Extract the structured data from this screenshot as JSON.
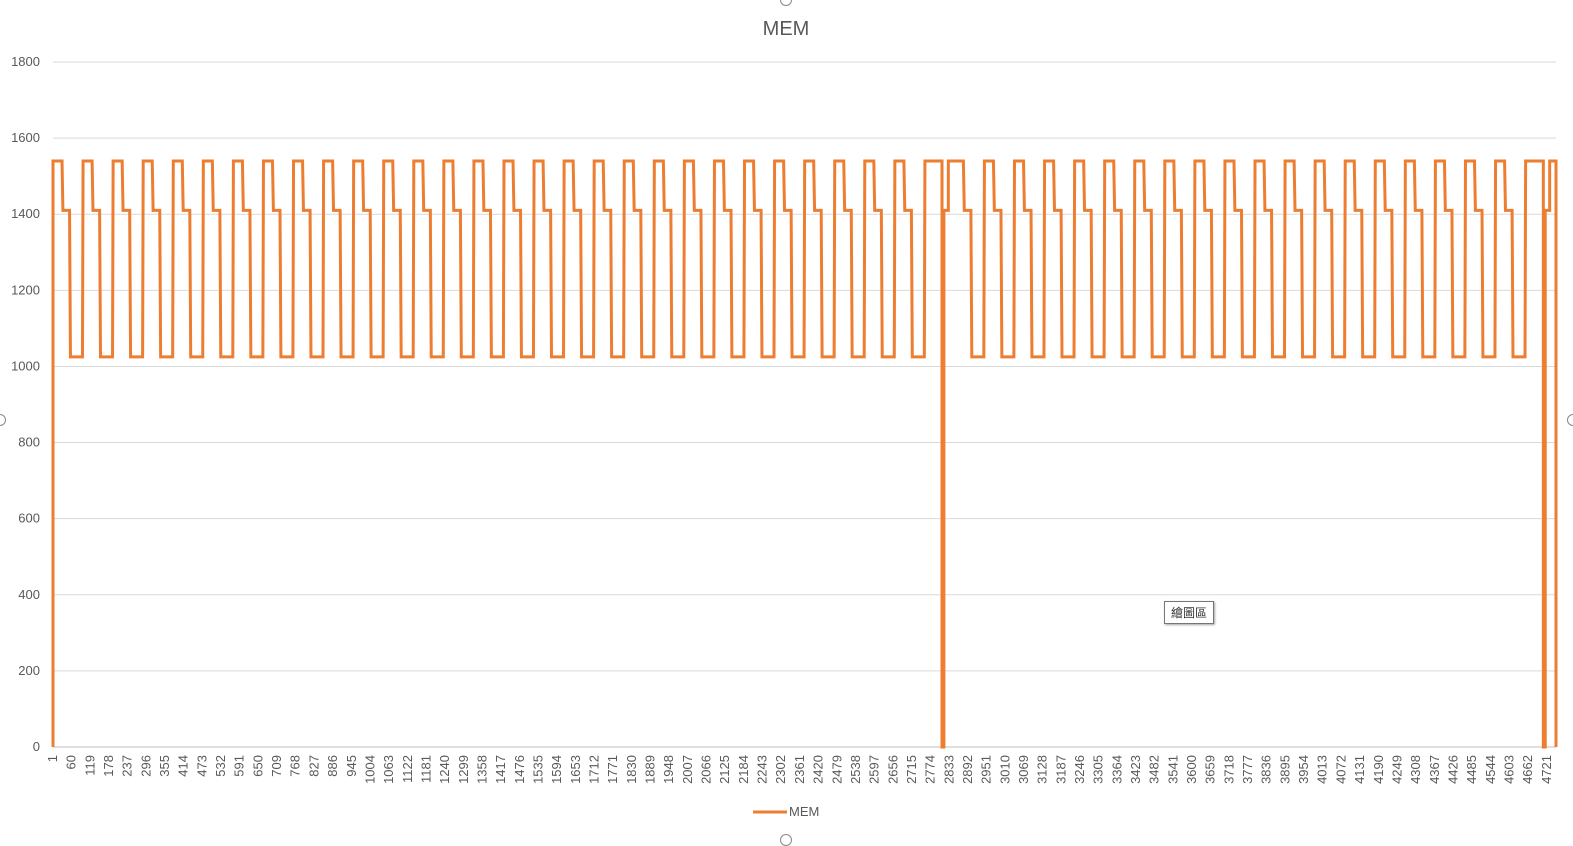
{
  "chart_data": {
    "type": "line",
    "title": "MEM",
    "xlabel": "",
    "ylabel": "",
    "ylim": [
      0,
      1800
    ],
    "yticks": [
      0,
      200,
      400,
      600,
      800,
      1000,
      1200,
      1400,
      1600,
      1800
    ],
    "x_count": 4750,
    "xtick_labels": [
      "1",
      "60",
      "119",
      "178",
      "237",
      "296",
      "355",
      "414",
      "473",
      "532",
      "591",
      "650",
      "709",
      "768",
      "827",
      "886",
      "945",
      "1004",
      "1063",
      "1122",
      "1181",
      "1240",
      "1299",
      "1358",
      "1417",
      "1476",
      "1535",
      "1594",
      "1653",
      "1712",
      "1771",
      "1830",
      "1889",
      "1948",
      "2007",
      "2066",
      "2125",
      "2184",
      "2243",
      "2302",
      "2361",
      "2420",
      "2479",
      "2538",
      "2597",
      "2656",
      "2715",
      "2774",
      "2833",
      "2892",
      "2951",
      "3010",
      "3069",
      "3128",
      "3187",
      "3246",
      "3305",
      "3364",
      "3423",
      "3482",
      "3541",
      "3600",
      "3659",
      "3718",
      "3777",
      "3836",
      "3895",
      "3954",
      "4013",
      "4072",
      "4131",
      "4190",
      "4249",
      "4308",
      "4367",
      "4426",
      "4485",
      "4544",
      "4603",
      "4662",
      "4721"
    ],
    "grid": true,
    "legend_position": "bottom",
    "series": [
      {
        "name": "MEM",
        "color": "#ED7D31",
        "pattern": {
          "cycle_length": 95,
          "levels": [
            1540,
            1410,
            1025
          ],
          "start_x": 1,
          "end_x": 4750,
          "drops_to_zero_at": [
            1,
            2810,
            4710,
            4750
          ]
        }
      }
    ]
  },
  "tooltip": {
    "label": "繪圖區"
  }
}
